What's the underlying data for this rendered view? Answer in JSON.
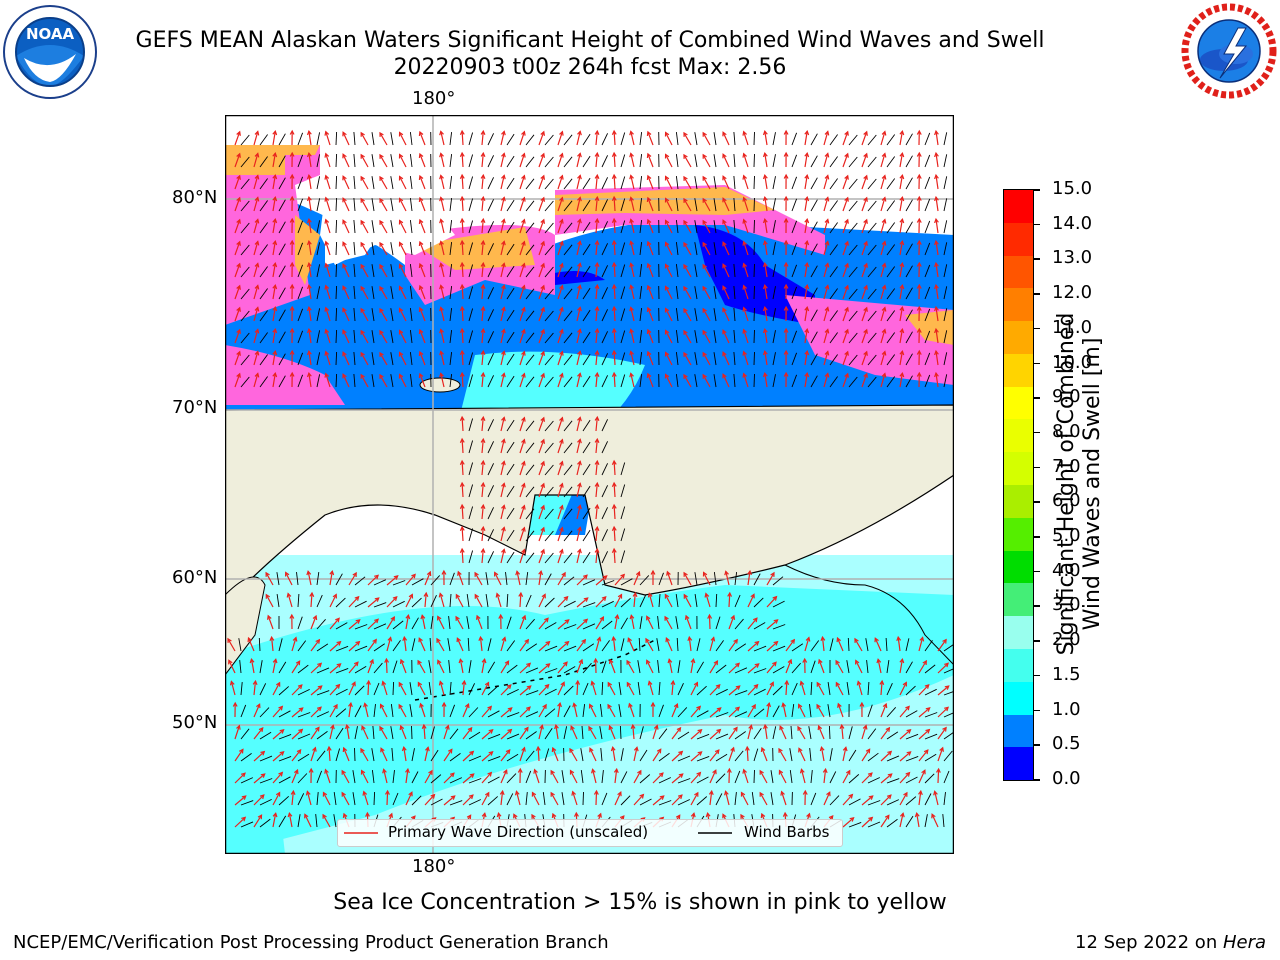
{
  "header": {
    "title_line1": "GEFS MEAN Alaskan Waters Significant Height of Combined Wind Waves and Swell",
    "title_line2": "20220903 t00z 264h fcst   Max: 2.56",
    "left_logo": "NOAA",
    "left_logo_ring": "NATIONAL OCEANIC AND ATMOSPHERIC ADMINISTRATION · U.S. DEPARTMENT OF COMMERCE",
    "right_logo_ring": "NATIONAL WEATHER SERVICE"
  },
  "map": {
    "lon_label_top": "180°",
    "lon_label_bottom": "180°",
    "lat_labels": [
      "80°N",
      "70°N",
      "60°N",
      "50°N"
    ]
  },
  "legend": {
    "wave_label": "Primary Wave Direction (unscaled)",
    "wind_label": "Wind Barbs",
    "wave_color": "#e8231e",
    "wind_color": "#000000"
  },
  "colorbar": {
    "title_line1": "Significant Height of Combined",
    "title_line2": "Wind Waves and Swell [m]",
    "ticks": [
      "15.0",
      "14.0",
      "13.0",
      "12.0",
      "11.0",
      "10.0",
      "9.0",
      "8.0",
      "7.0",
      "6.0",
      "5.0",
      "4.0",
      "3.0",
      "2.0",
      "1.5",
      "1.0",
      "0.5",
      "0.0"
    ],
    "colors_top_to_bottom": [
      "#ff0000",
      "#ff2a00",
      "#ff5500",
      "#ff7f00",
      "#ffaa00",
      "#ffd400",
      "#ffff00",
      "#eaff00",
      "#d4ff00",
      "#aaee00",
      "#55ee00",
      "#00dd00",
      "#44ee77",
      "#99ffee",
      "#44ffee",
      "#00ffff",
      "#0080ff",
      "#0000ff"
    ]
  },
  "colors": {
    "ocean_light": "#aaffff",
    "ocean_mid": "#55ffff",
    "ocean_deep": "#0080ff",
    "ocean_low": "#0000ff",
    "ice_pink": "#ff66dd",
    "ice_orange": "#ffb84d",
    "land": "#efeedc"
  },
  "subtitle": "Sea Ice Concentration > 15% is shown in pink to yellow",
  "footer": {
    "left": "NCEP/EMC/Verification Post Processing Product Generation Branch",
    "right_prefix": "12 Sep 2022 on ",
    "right_host": "Hera"
  }
}
